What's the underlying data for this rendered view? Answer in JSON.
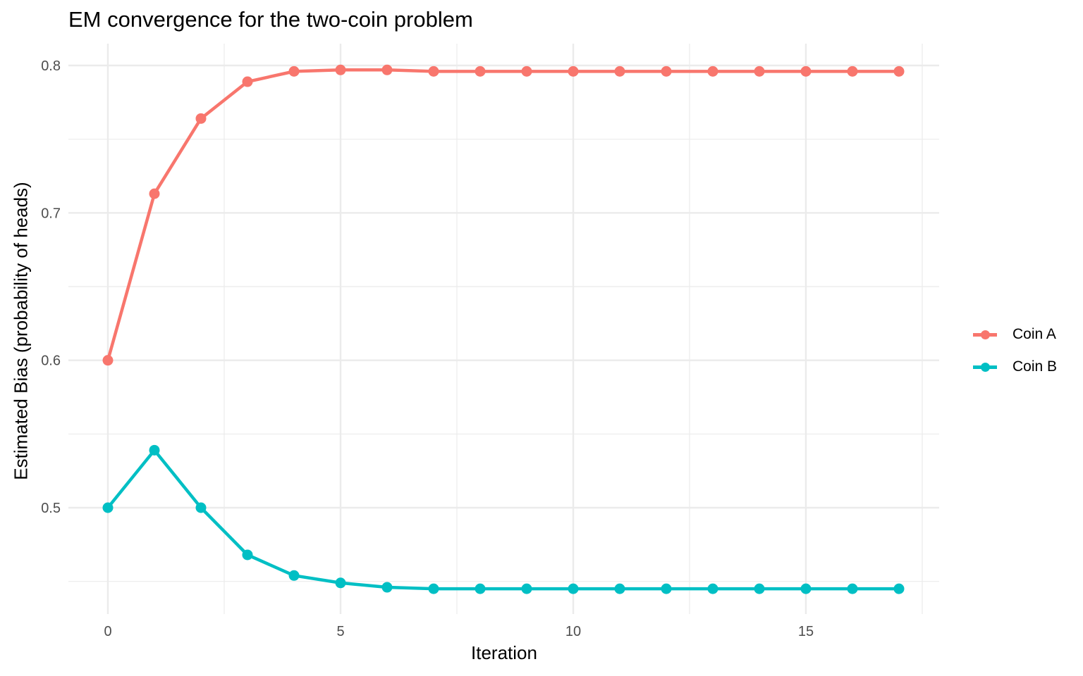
{
  "chart_data": {
    "type": "line",
    "title": "EM convergence for the two-coin problem",
    "xlabel": "Iteration",
    "ylabel": "Estimated Bias (probability of heads)",
    "x": [
      0,
      1,
      2,
      3,
      4,
      5,
      6,
      7,
      8,
      9,
      10,
      11,
      12,
      13,
      14,
      15,
      16,
      17
    ],
    "series": [
      {
        "name": "Coin A",
        "color": "#F8766D",
        "values": [
          0.6,
          0.713,
          0.764,
          0.789,
          0.796,
          0.797,
          0.797,
          0.796,
          0.796,
          0.796,
          0.796,
          0.796,
          0.796,
          0.796,
          0.796,
          0.796,
          0.796,
          0.796
        ]
      },
      {
        "name": "Coin B",
        "color": "#00BFC4",
        "values": [
          0.5,
          0.539,
          0.5,
          0.468,
          0.454,
          0.449,
          0.446,
          0.445,
          0.445,
          0.445,
          0.445,
          0.445,
          0.445,
          0.445,
          0.445,
          0.445,
          0.445,
          0.445
        ]
      }
    ],
    "xticks": [
      0,
      5,
      10,
      15
    ],
    "yticks": [
      0.5,
      0.6,
      0.7,
      0.8
    ],
    "xlim": [
      -0.85,
      17.85
    ],
    "ylim": [
      0.42,
      0.815
    ],
    "grid": true,
    "legend_position": "right"
  },
  "labels": {
    "title": "EM convergence for the two-coin problem",
    "xlabel": "Iteration",
    "ylabel": "Estimated Bias (probability of heads)",
    "legend": [
      "Coin A",
      "Coin B"
    ]
  }
}
